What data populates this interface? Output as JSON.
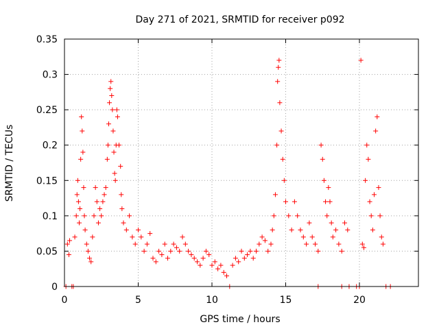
{
  "chart_data": {
    "type": "scatter",
    "title": "Day 271 of 2021, SRMTID for receiver p092",
    "xlabel": "GPS time / hours",
    "ylabel": "SRMTID / TECUs",
    "xlim": [
      0,
      24
    ],
    "ylim": [
      0,
      0.35
    ],
    "x_ticks": [
      0,
      5,
      10,
      15,
      20
    ],
    "x_tick_labels": [
      "0",
      "5",
      "10",
      "15",
      "20"
    ],
    "y_ticks": [
      0,
      0.05,
      0.1,
      0.15,
      0.2,
      0.25,
      0.3,
      0.35
    ],
    "y_tick_labels": [
      "0",
      "0.05",
      "0.1",
      "0.15",
      "0.2",
      "0.25",
      "0.3",
      "0.35"
    ],
    "grid": true,
    "marker": "+",
    "color": "#ff0000",
    "series": [
      {
        "name": "SRMTID",
        "points": [
          [
            0.1,
            0
          ],
          [
            0.2,
            0.06
          ],
          [
            0.3,
            0.045
          ],
          [
            0.35,
            0.065
          ],
          [
            0.5,
            0
          ],
          [
            0.6,
            0
          ],
          [
            0.7,
            0.07
          ],
          [
            0.8,
            0.1
          ],
          [
            0.85,
            0.13
          ],
          [
            0.9,
            0.15
          ],
          [
            0.95,
            0.12
          ],
          [
            1.0,
            0.09
          ],
          [
            1.05,
            0.11
          ],
          [
            1.1,
            0.18
          ],
          [
            1.15,
            0.24
          ],
          [
            1.2,
            0.22
          ],
          [
            1.25,
            0.19
          ],
          [
            1.3,
            0.14
          ],
          [
            1.35,
            0.1
          ],
          [
            1.4,
            0.08
          ],
          [
            1.5,
            0.06
          ],
          [
            1.6,
            0.05
          ],
          [
            1.7,
            0.04
          ],
          [
            1.8,
            0.035
          ],
          [
            1.9,
            0.07
          ],
          [
            2.0,
            0.1
          ],
          [
            2.1,
            0.14
          ],
          [
            2.2,
            0.12
          ],
          [
            2.3,
            0.09
          ],
          [
            2.4,
            0.11
          ],
          [
            2.5,
            0.1
          ],
          [
            2.6,
            0.12
          ],
          [
            2.7,
            0.13
          ],
          [
            2.8,
            0.14
          ],
          [
            2.9,
            0.18
          ],
          [
            2.95,
            0.2
          ],
          [
            3.0,
            0.23
          ],
          [
            3.05,
            0.26
          ],
          [
            3.1,
            0.28
          ],
          [
            3.15,
            0.29
          ],
          [
            3.2,
            0.27
          ],
          [
            3.25,
            0.25
          ],
          [
            3.3,
            0.22
          ],
          [
            3.35,
            0.19
          ],
          [
            3.4,
            0.16
          ],
          [
            3.45,
            0.15
          ],
          [
            3.5,
            0.2
          ],
          [
            3.55,
            0.25
          ],
          [
            3.6,
            0.24
          ],
          [
            3.7,
            0.2
          ],
          [
            3.8,
            0.17
          ],
          [
            3.85,
            0.13
          ],
          [
            3.9,
            0.11
          ],
          [
            4.0,
            0.09
          ],
          [
            4.2,
            0.08
          ],
          [
            4.4,
            0.1
          ],
          [
            4.6,
            0.07
          ],
          [
            4.8,
            0.06
          ],
          [
            5.0,
            0.08
          ],
          [
            5.2,
            0.07
          ],
          [
            5.4,
            0.05
          ],
          [
            5.6,
            0.06
          ],
          [
            5.8,
            0.075
          ],
          [
            6.0,
            0.04
          ],
          [
            6.2,
            0.035
          ],
          [
            6.4,
            0.05
          ],
          [
            6.6,
            0.045
          ],
          [
            6.8,
            0.06
          ],
          [
            7.0,
            0.04
          ],
          [
            7.2,
            0.05
          ],
          [
            7.4,
            0.06
          ],
          [
            7.6,
            0.055
          ],
          [
            7.8,
            0.05
          ],
          [
            8.0,
            0.07
          ],
          [
            8.2,
            0.06
          ],
          [
            8.4,
            0.05
          ],
          [
            8.6,
            0.045
          ],
          [
            8.8,
            0.04
          ],
          [
            9.0,
            0.035
          ],
          [
            9.2,
            0.03
          ],
          [
            9.4,
            0.04
          ],
          [
            9.6,
            0.05
          ],
          [
            9.8,
            0.045
          ],
          [
            10.0,
            0.03
          ],
          [
            10.2,
            0.035
          ],
          [
            10.4,
            0.025
          ],
          [
            10.6,
            0.03
          ],
          [
            10.8,
            0.02
          ],
          [
            11.0,
            0.015
          ],
          [
            11.2,
            0
          ],
          [
            11.4,
            0.03
          ],
          [
            11.6,
            0.04
          ],
          [
            11.8,
            0.035
          ],
          [
            12.0,
            0.05
          ],
          [
            12.2,
            0.04
          ],
          [
            12.4,
            0.045
          ],
          [
            12.6,
            0.05
          ],
          [
            12.8,
            0.04
          ],
          [
            13.0,
            0.05
          ],
          [
            13.2,
            0.06
          ],
          [
            13.4,
            0.07
          ],
          [
            13.6,
            0.065
          ],
          [
            13.8,
            0.05
          ],
          [
            14.0,
            0.06
          ],
          [
            14.1,
            0.08
          ],
          [
            14.2,
            0.1
          ],
          [
            14.3,
            0.13
          ],
          [
            14.4,
            0.2
          ],
          [
            14.45,
            0.29
          ],
          [
            14.5,
            0.31
          ],
          [
            14.55,
            0.32
          ],
          [
            14.6,
            0.26
          ],
          [
            14.7,
            0.22
          ],
          [
            14.8,
            0.18
          ],
          [
            14.9,
            0.15
          ],
          [
            15.0,
            0.12
          ],
          [
            15.2,
            0.1
          ],
          [
            15.4,
            0.08
          ],
          [
            15.6,
            0.12
          ],
          [
            15.8,
            0.1
          ],
          [
            16.0,
            0.08
          ],
          [
            16.2,
            0.07
          ],
          [
            16.4,
            0.06
          ],
          [
            16.6,
            0.09
          ],
          [
            16.8,
            0.07
          ],
          [
            17.0,
            0.06
          ],
          [
            17.2,
            0.05
          ],
          [
            17.4,
            0.2
          ],
          [
            17.5,
            0.18
          ],
          [
            17.6,
            0.15
          ],
          [
            17.7,
            0.12
          ],
          [
            17.8,
            0.1
          ],
          [
            17.9,
            0.14
          ],
          [
            18.0,
            0.12
          ],
          [
            18.1,
            0.09
          ],
          [
            18.2,
            0.07
          ],
          [
            18.4,
            0.08
          ],
          [
            18.6,
            0.06
          ],
          [
            18.8,
            0.05
          ],
          [
            19.0,
            0.09
          ],
          [
            19.2,
            0.08
          ],
          [
            20.1,
            0.32
          ],
          [
            20.2,
            0.06
          ],
          [
            20.3,
            0.055
          ],
          [
            20.4,
            0.15
          ],
          [
            20.5,
            0.2
          ],
          [
            20.6,
            0.18
          ],
          [
            20.7,
            0.12
          ],
          [
            20.8,
            0.1
          ],
          [
            20.9,
            0.08
          ],
          [
            21.0,
            0.13
          ],
          [
            21.1,
            0.22
          ],
          [
            21.2,
            0.24
          ],
          [
            21.3,
            0.14
          ],
          [
            21.4,
            0.1
          ],
          [
            21.5,
            0.07
          ],
          [
            21.6,
            0.06
          ],
          [
            17.2,
            0
          ],
          [
            18.8,
            0
          ],
          [
            19.3,
            0
          ],
          [
            19.8,
            0
          ],
          [
            20.0,
            0
          ],
          [
            21.8,
            0
          ],
          [
            22.1,
            0
          ]
        ]
      }
    ]
  }
}
